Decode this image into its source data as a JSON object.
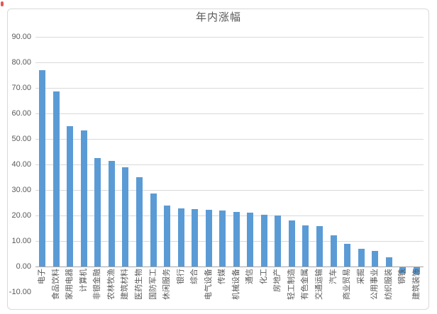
{
  "chart_data": {
    "type": "bar",
    "title": "年内涨幅",
    "categories": [
      "电子",
      "食品饮料",
      "家用电器",
      "计算机",
      "非银金融",
      "农林牧渔",
      "建筑材料",
      "医药生物",
      "国防军工",
      "休闲服务",
      "银行",
      "综合",
      "电气设备",
      "传媒",
      "机械设备",
      "通信",
      "化工",
      "房地产",
      "轻工制造",
      "有色金属",
      "交通运输",
      "汽车",
      "商业贸易",
      "采掘",
      "公用事业",
      "纺织服装",
      "钢铁",
      "建筑装饰"
    ],
    "values": [
      77.0,
      68.6,
      55.0,
      53.2,
      42.4,
      41.3,
      39.0,
      35.0,
      28.5,
      23.9,
      22.9,
      22.5,
      22.3,
      21.9,
      21.4,
      21.1,
      20.3,
      20.1,
      18.0,
      16.0,
      15.7,
      12.1,
      8.8,
      6.9,
      6.0,
      3.6,
      -2.5,
      -2.8
    ],
    "xlabel": "",
    "ylabel": "",
    "axis": {
      "min": -10,
      "max": 90,
      "step": 10,
      "tick_decimals": 2
    },
    "y_tick_labels": [
      "90.00",
      "80.00",
      "70.00",
      "60.00",
      "50.00",
      "40.00",
      "30.00",
      "20.00",
      "10.00",
      "0.00",
      "-10.00"
    ],
    "grid": true,
    "legend": "none",
    "colors": {
      "bar": "#5B9BD5",
      "gridline": "#D9D9D9",
      "axis_line": "#A6A6A6",
      "text": "#595959",
      "frame_border": "#D9D9D9",
      "background": "#FFFFFF",
      "corner_artifact": "#E05A54"
    }
  }
}
